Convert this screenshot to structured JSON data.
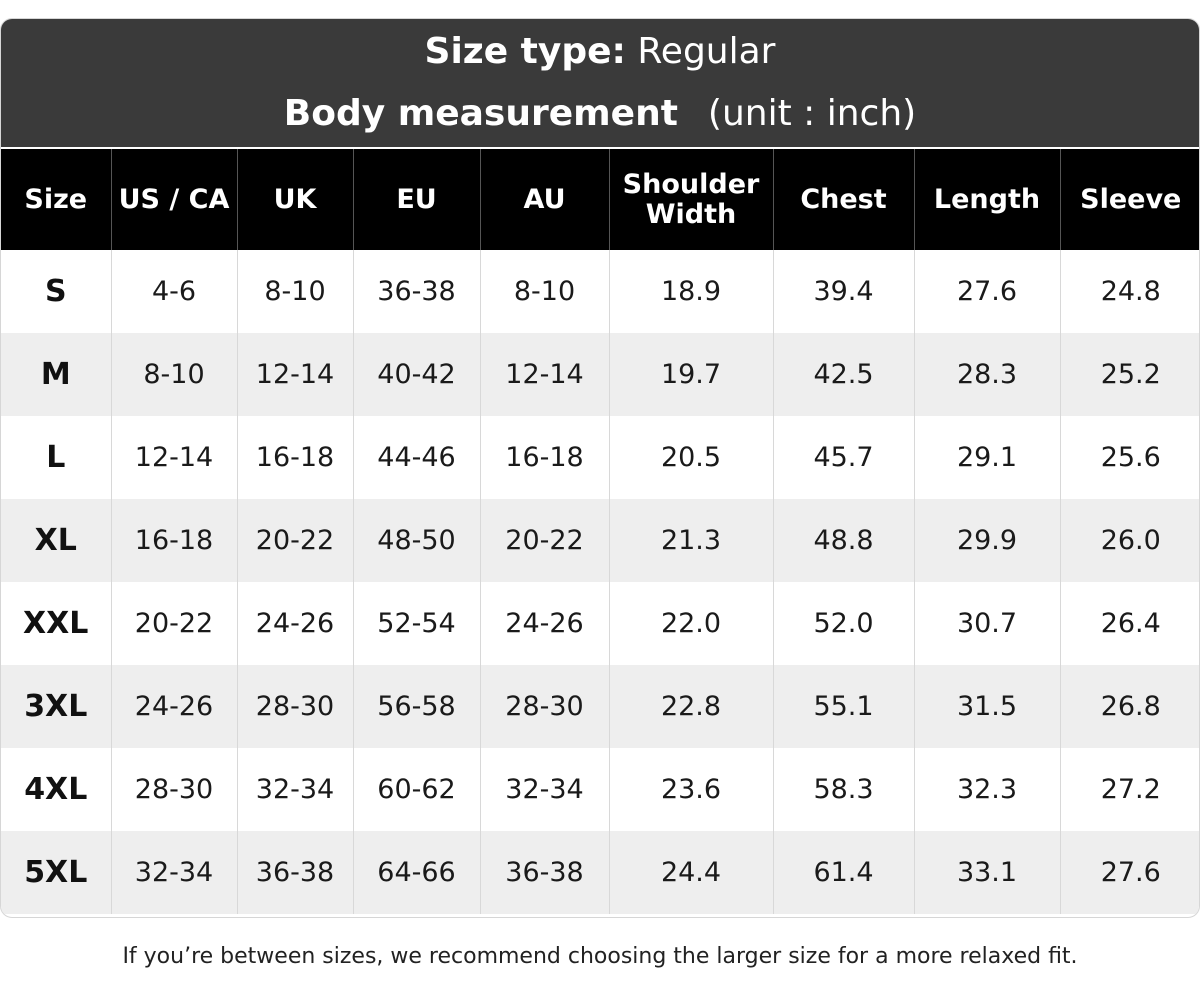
{
  "banner": {
    "size_type_label": "Size type:",
    "size_type_value": "Regular",
    "measurement_label": "Body measurement",
    "unit": "(unit : inch)"
  },
  "table": {
    "headers": [
      "Size",
      "US / CA",
      "UK",
      "EU",
      "AU",
      "Shoulder\nWidth",
      "Chest",
      "Length",
      "Sleeve"
    ],
    "rows": [
      [
        "S",
        "4-6",
        "8-10",
        "36-38",
        "8-10",
        "18.9",
        "39.4",
        "27.6",
        "24.8"
      ],
      [
        "M",
        "8-10",
        "12-14",
        "40-42",
        "12-14",
        "19.7",
        "42.5",
        "28.3",
        "25.2"
      ],
      [
        "L",
        "12-14",
        "16-18",
        "44-46",
        "16-18",
        "20.5",
        "45.7",
        "29.1",
        "25.6"
      ],
      [
        "XL",
        "16-18",
        "20-22",
        "48-50",
        "20-22",
        "21.3",
        "48.8",
        "29.9",
        "26.0"
      ],
      [
        "XXL",
        "20-22",
        "24-26",
        "52-54",
        "24-26",
        "22.0",
        "52.0",
        "30.7",
        "26.4"
      ],
      [
        "3XL",
        "24-26",
        "28-30",
        "56-58",
        "28-30",
        "22.8",
        "55.1",
        "31.5",
        "26.8"
      ],
      [
        "4XL",
        "28-30",
        "32-34",
        "60-62",
        "32-34",
        "23.6",
        "58.3",
        "32.3",
        "27.2"
      ],
      [
        "5XL",
        "32-34",
        "36-38",
        "64-66",
        "36-38",
        "24.4",
        "61.4",
        "33.1",
        "27.6"
      ]
    ]
  },
  "note": "If you’re between sizes, we recommend choosing the larger size for a more relaxed fit.",
  "colors": {
    "banner_bg": "#3a3a3a",
    "header_bg": "#000000",
    "row_alt_bg": "#eeeeee"
  }
}
